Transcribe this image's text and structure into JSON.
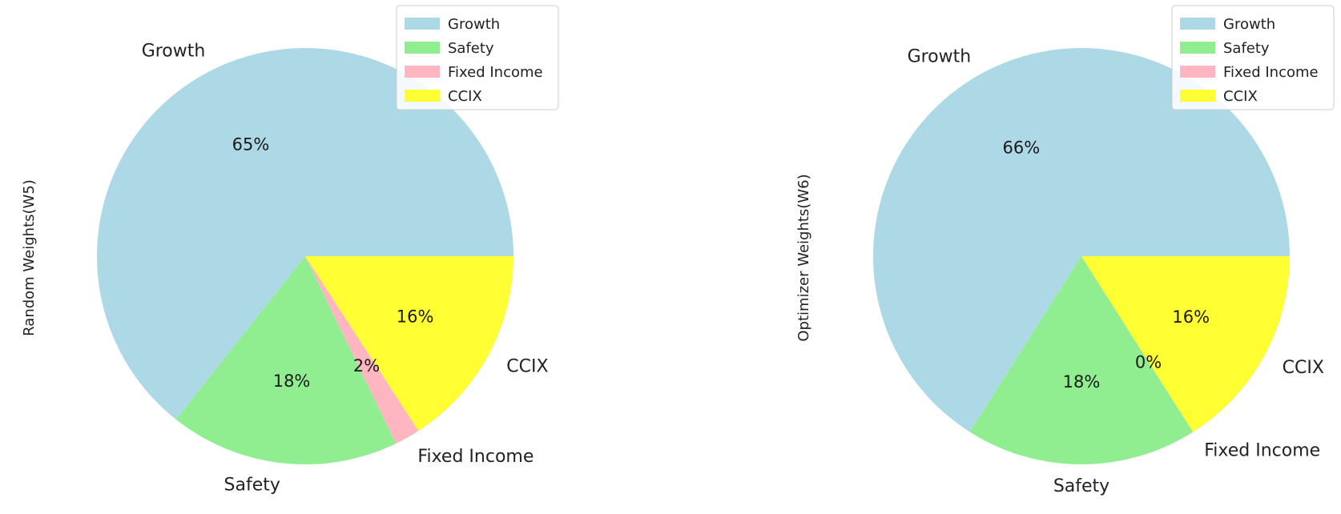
{
  "colors": {
    "Growth": "#add8e6",
    "Safety": "#90ee90",
    "Fixed Income": "#ffb6c1",
    "CCIX": "#ffff33"
  },
  "chart_data": [
    {
      "type": "pie",
      "ylabel": "Random Weights(W5)",
      "labels": [
        "Growth",
        "Safety",
        "Fixed Income",
        "CCIX"
      ],
      "values": [
        65,
        18,
        2,
        16
      ],
      "value_labels": [
        "65%",
        "18%",
        "2%",
        "16%"
      ],
      "legend": [
        "Growth",
        "Safety",
        "Fixed Income",
        "CCIX"
      ],
      "legend_position": "upper right"
    },
    {
      "type": "pie",
      "ylabel": "Optimizer Weights(W6)",
      "labels": [
        "Growth",
        "Safety",
        "Fixed Income",
        "CCIX"
      ],
      "values": [
        66,
        18,
        0,
        16
      ],
      "value_labels": [
        "66%",
        "18%",
        "0%",
        "16%"
      ],
      "legend": [
        "Growth",
        "Safety",
        "Fixed Income",
        "CCIX"
      ],
      "legend_position": "upper right"
    }
  ]
}
